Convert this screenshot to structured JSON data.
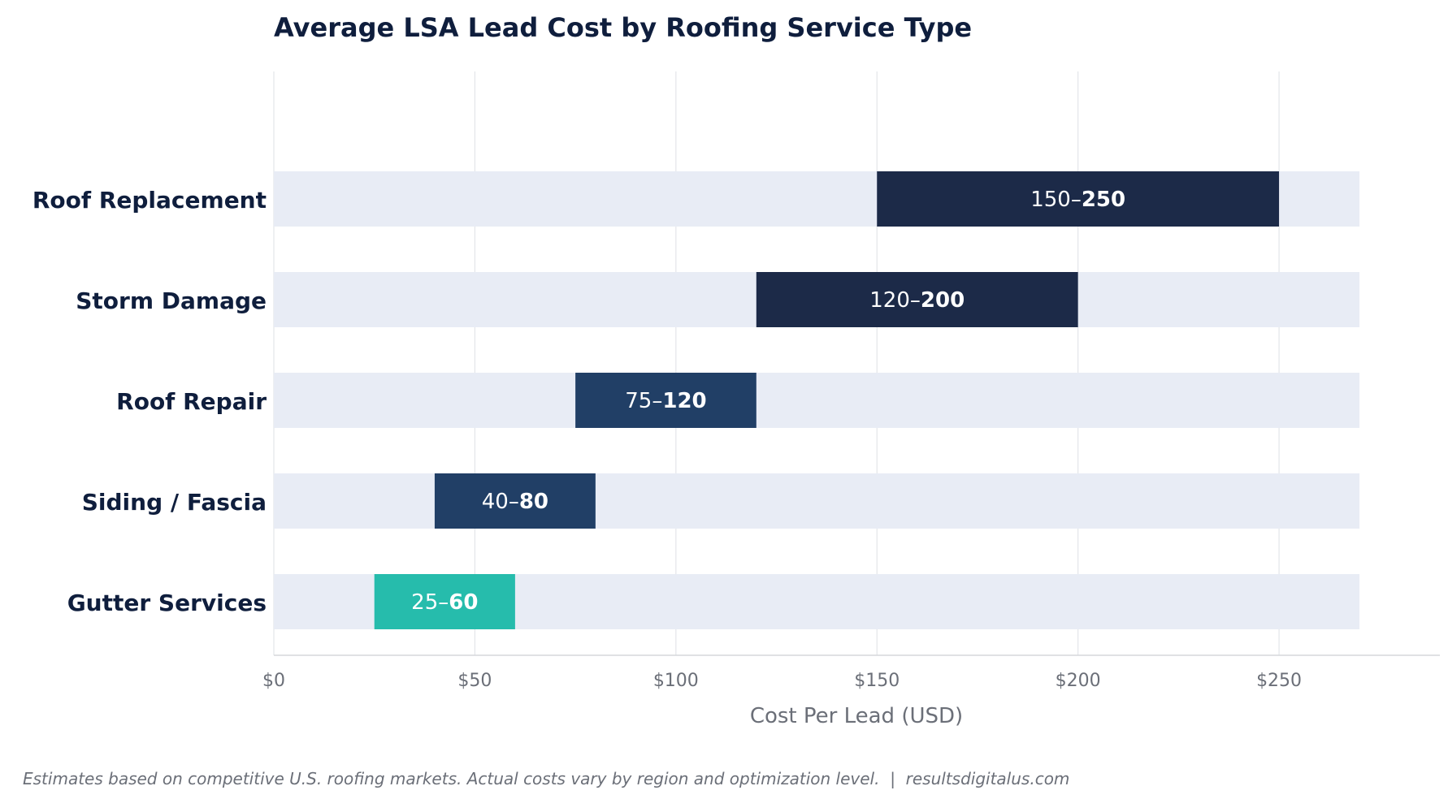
{
  "chart_data": {
    "type": "bar",
    "orientation": "horizontal",
    "subtype": "range",
    "title": "Average LSA Lead Cost by Roofing Service Type",
    "xlabel": "Cost Per Lead (USD)",
    "ylabel": "",
    "xlim": [
      0,
      290
    ],
    "track_max": 270,
    "x_ticks": [
      0,
      50,
      100,
      150,
      200,
      250
    ],
    "x_tick_labels": [
      "$0",
      "$50",
      "$100",
      "$150",
      "$200",
      "$250"
    ],
    "grid": "vertical",
    "categories": [
      "Roof Replacement",
      "Storm Damage",
      "Roof Repair",
      "Siding / Fascia",
      "Gutter Services"
    ],
    "ranges": [
      {
        "low": 150,
        "high": 250,
        "color": "#1c2a48"
      },
      {
        "low": 120,
        "high": 200,
        "color": "#1c2a48"
      },
      {
        "low": 75,
        "high": 120,
        "color": "#213f66"
      },
      {
        "low": 40,
        "high": 80,
        "color": "#213f66"
      },
      {
        "low": 25,
        "high": 60,
        "color": "#26bcac"
      }
    ],
    "data_labels": [
      {
        "low": "150",
        "high": "250"
      },
      {
        "low": "120",
        "high": "200"
      },
      {
        "low": "75",
        "high": "120"
      },
      {
        "low": "40",
        "high": "80"
      },
      {
        "low": "25",
        "high": "60"
      }
    ],
    "range_separator": "–",
    "track_color": "#e8ecf5",
    "footnote": "Estimates based on competitive U.S. roofing markets. Actual costs vary by region and optimization level.  |  resultsdigitalus.com"
  }
}
